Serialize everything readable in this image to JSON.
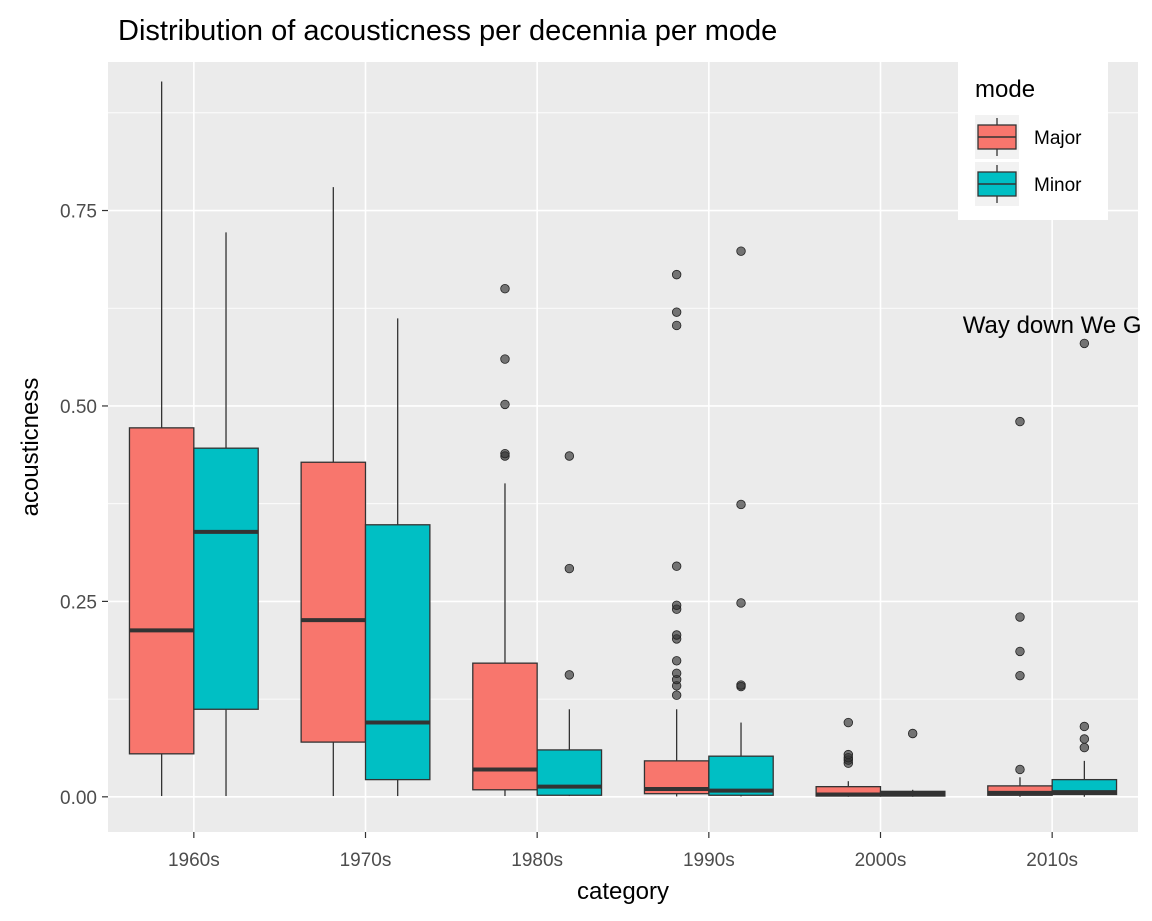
{
  "chart_data": {
    "type": "boxplot",
    "title": "Distribution of acousticness per decennia per mode",
    "xlabel": "category",
    "ylabel": "acousticness",
    "categories": [
      "1960s",
      "1970s",
      "1980s",
      "1990s",
      "2000s",
      "2010s"
    ],
    "ylim": [
      -0.045,
      0.94
    ],
    "yticks": [
      0.0,
      0.25,
      0.5,
      0.75
    ],
    "ytick_labels": [
      "0.00",
      "0.25",
      "0.50",
      "0.75"
    ],
    "grid": true,
    "legend": {
      "title": "mode",
      "placement": "top-right",
      "entries": [
        "Major",
        "Minor"
      ]
    },
    "series": [
      {
        "name": "Major",
        "color": "#F8766D",
        "boxes": [
          {
            "min": 0.001,
            "q1": 0.055,
            "median": 0.213,
            "q3": 0.472,
            "max": 0.915,
            "outliers": []
          },
          {
            "min": 0.001,
            "q1": 0.07,
            "median": 0.226,
            "q3": 0.428,
            "max": 0.78,
            "outliers": []
          },
          {
            "min": 0.001,
            "q1": 0.009,
            "median": 0.035,
            "q3": 0.171,
            "max": 0.401,
            "outliers": [
              0.436,
              0.439,
              0.502,
              0.56,
              0.65
            ]
          },
          {
            "min": 0.0005,
            "q1": 0.004,
            "median": 0.01,
            "q3": 0.046,
            "max": 0.112,
            "outliers": [
              0.13,
              0.142,
              0.15,
              0.158,
              0.174,
              0.202,
              0.207,
              0.24,
              0.245,
              0.295,
              0.603,
              0.62,
              0.668
            ]
          },
          {
            "min": 0.0001,
            "q1": 0.001,
            "median": 0.003,
            "q3": 0.013,
            "max": 0.02,
            "outliers": [
              0.043,
              0.047,
              0.05,
              0.054,
              0.095
            ]
          },
          {
            "min": 0.0001,
            "q1": 0.002,
            "median": 0.005,
            "q3": 0.014,
            "max": 0.025,
            "outliers": [
              0.035,
              0.155,
              0.186,
              0.23,
              0.48
            ]
          }
        ]
      },
      {
        "name": "Minor",
        "color": "#00BFC4",
        "boxes": [
          {
            "min": 0.001,
            "q1": 0.112,
            "median": 0.339,
            "q3": 0.446,
            "max": 0.722,
            "outliers": []
          },
          {
            "min": 0.001,
            "q1": 0.022,
            "median": 0.095,
            "q3": 0.348,
            "max": 0.612,
            "outliers": []
          },
          {
            "min": 0.001,
            "q1": 0.002,
            "median": 0.013,
            "q3": 0.06,
            "max": 0.112,
            "outliers": [
              0.156,
              0.292,
              0.436
            ]
          },
          {
            "min": 0.0005,
            "q1": 0.002,
            "median": 0.008,
            "q3": 0.052,
            "max": 0.095,
            "outliers": [
              0.141,
              0.143,
              0.248,
              0.374,
              0.698
            ]
          },
          {
            "min": 0.0001,
            "q1": 0.001,
            "median": 0.004,
            "q3": 0.007,
            "max": 0.009,
            "outliers": [
              0.081
            ]
          },
          {
            "min": 0.0001,
            "q1": 0.003,
            "median": 0.006,
            "q3": 0.022,
            "max": 0.046,
            "outliers": [
              0.063,
              0.074,
              0.09,
              0.58
            ]
          }
        ]
      }
    ],
    "annotations": [
      {
        "text": "Way down We G",
        "x_category": "2010s",
        "y": 0.605
      }
    ]
  }
}
